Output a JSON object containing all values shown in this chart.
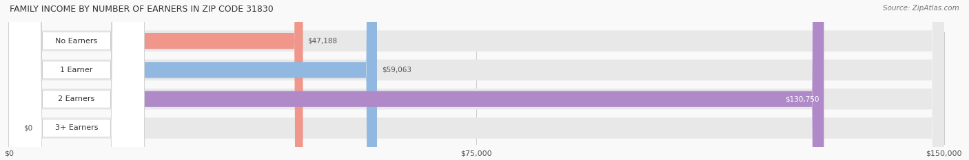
{
  "title": "FAMILY INCOME BY NUMBER OF EARNERS IN ZIP CODE 31830",
  "source": "Source: ZipAtlas.com",
  "categories": [
    "No Earners",
    "1 Earner",
    "2 Earners",
    "3+ Earners"
  ],
  "values": [
    47188,
    59063,
    130750,
    0
  ],
  "bar_colors": [
    "#f0968a",
    "#90b8e0",
    "#b08ac8",
    "#7dd4d0"
  ],
  "bar_bg_color": "#eeeeee",
  "label_bg_color": "#ffffff",
  "x_max": 150000,
  "x_ticks": [
    0,
    75000,
    150000
  ],
  "x_tick_labels": [
    "$0",
    "$75,000",
    "$150,000"
  ],
  "value_labels": [
    "$47,188",
    "$59,063",
    "$130,750",
    "$0"
  ],
  "fig_width": 14.06,
  "fig_height": 2.33,
  "dpi": 100,
  "background_color": "#f9f9f9"
}
